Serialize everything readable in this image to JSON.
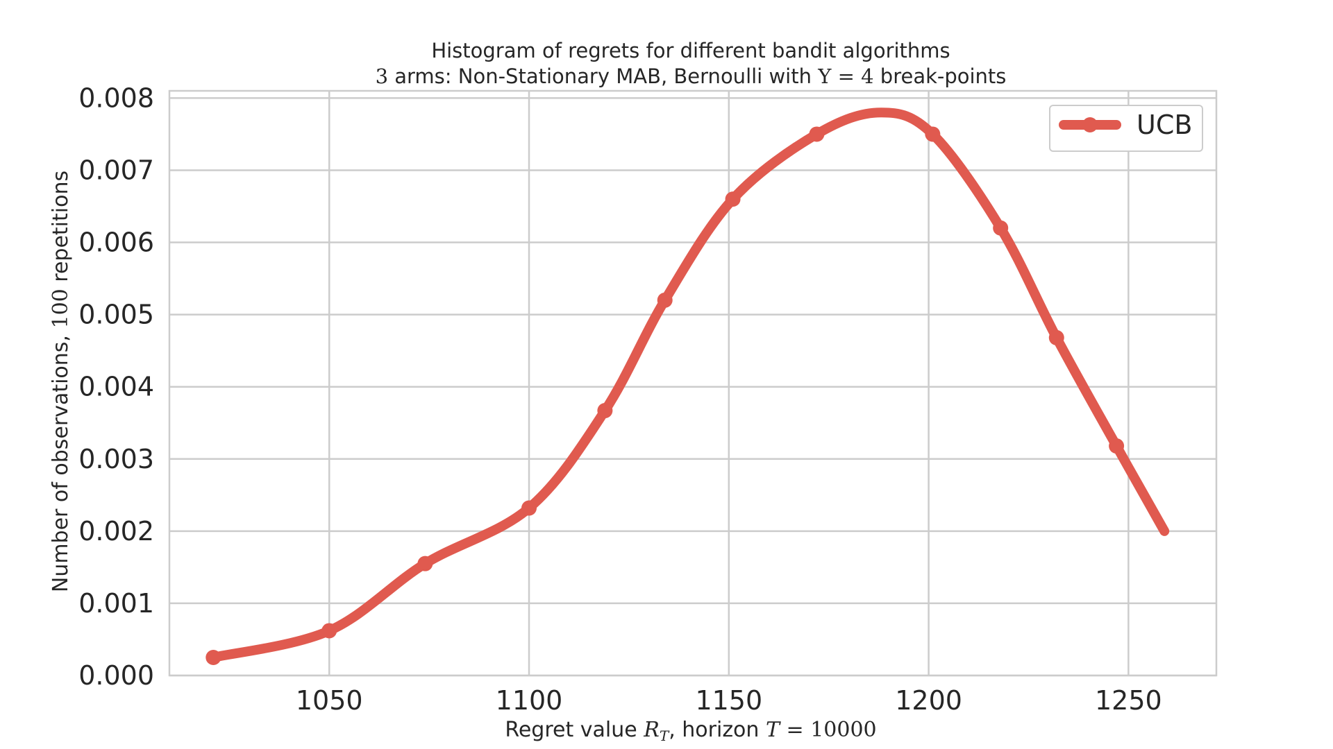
{
  "chart_data": {
    "type": "line",
    "title": "Histogram of regrets for different bandit algorithms",
    "subtitle": {
      "pre": "",
      "n_arms": "3",
      "mid": " arms: Non-Stationary MAB, Bernoulli with ",
      "symbol": "Υ",
      "eq": " = ",
      "breakpoints": "4",
      "post": " break-points"
    },
    "xlabel": {
      "pre": "Regret value ",
      "var": "R",
      "sub": "T",
      "mid": ", horizon ",
      "var2": "T",
      "eq": " = ",
      "value": "10000"
    },
    "ylabel": {
      "pre": "Number of observations, ",
      "value": "100",
      "post": " repetitions"
    },
    "xlim": [
      1010,
      1272
    ],
    "ylim": [
      0,
      0.0081
    ],
    "x_ticks": [
      1050,
      1100,
      1150,
      1200,
      1250
    ],
    "y_ticks": [
      "0.000",
      "0.001",
      "0.002",
      "0.003",
      "0.004",
      "0.005",
      "0.006",
      "0.007",
      "0.008"
    ],
    "grid": true,
    "legend_position": "top-right",
    "series": [
      {
        "name": "UCB",
        "color": "#e05a4f",
        "x": [
          1021,
          1050,
          1074,
          1100,
          1119,
          1134,
          1151,
          1172,
          1188,
          1201,
          1218,
          1232,
          1247,
          1259
        ],
        "y": [
          0.00025,
          0.00062,
          0.00155,
          0.00232,
          0.00367,
          0.0052,
          0.0066,
          0.0075,
          0.0078,
          0.0075,
          0.0062,
          0.00468,
          0.00318,
          0.002
        ],
        "markers_x": [
          1021,
          1050,
          1074,
          1100,
          1119,
          1134,
          1151,
          1172,
          1201,
          1218,
          1232,
          1247
        ],
        "markers_y": [
          0.00025,
          0.00062,
          0.00155,
          0.00232,
          0.00367,
          0.0052,
          0.0066,
          0.0075,
          0.0075,
          0.0062,
          0.00468,
          0.00318
        ]
      }
    ]
  }
}
